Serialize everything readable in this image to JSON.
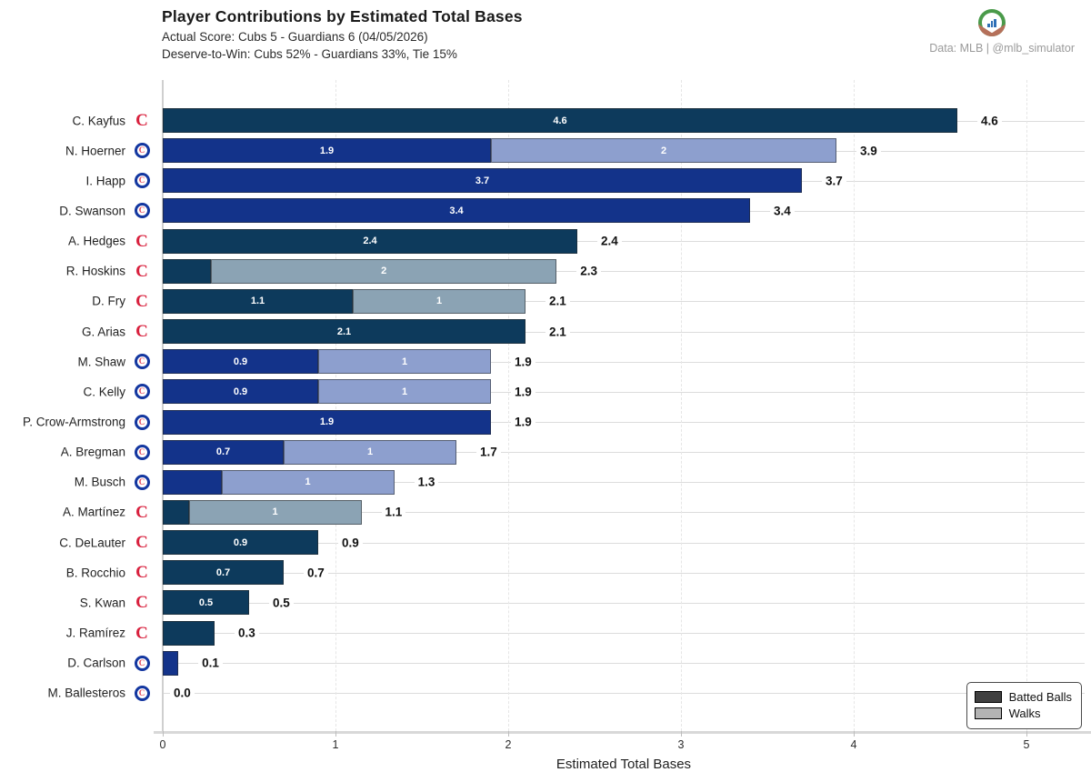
{
  "header": {
    "title": "Player Contributions by Estimated Total Bases",
    "subtitle1": "Actual Score: Cubs 5 - Guardians 6  (04/05/2026)",
    "subtitle2": "Deserve-to-Win: Cubs 52% - Guardians 33%, Tie 15%",
    "credit": "Data: MLB  |  @mlb_simulator",
    "logo": "mlb-simulator-badge"
  },
  "legend": {
    "batted_label": "Batted Balls",
    "walks_label": "Walks",
    "position": "lower right"
  },
  "colors": {
    "guardians_batted": "#0d3a5c",
    "guardians_walks": "#8ba3b4",
    "cubs_batted": "#13338a",
    "cubs_walks": "#8d9fce",
    "guardians_logo_red": "#d8203d",
    "cubs_logo_blue": "#1437a0",
    "bar_label_text": "#ffffff",
    "total_label_text": "#111111",
    "gridline": "#dcdcdc"
  },
  "chart_data": {
    "type": "bar",
    "orientation": "horizontal",
    "stacked": true,
    "title": "Player Contributions by Estimated Total Bases",
    "xlabel": "Estimated Total Bases",
    "ylabel": "",
    "xlim": [
      0,
      5.33
    ],
    "xticks": [
      "0",
      "1",
      "2",
      "3",
      "4",
      "5"
    ],
    "grid": true,
    "series_names": [
      "Batted Balls",
      "Walks"
    ],
    "rows": [
      {
        "player": "C. Kayfus",
        "team": "guardians",
        "batted": 4.6,
        "walks": 0,
        "batted_label": "4.6",
        "walks_label": "",
        "total_label": "4.6"
      },
      {
        "player": "N. Hoerner",
        "team": "cubs",
        "batted": 1.9,
        "walks": 2.0,
        "batted_label": "1.9",
        "walks_label": "2",
        "total_label": "3.9"
      },
      {
        "player": "I. Happ",
        "team": "cubs",
        "batted": 3.7,
        "walks": 0,
        "batted_label": "3.7",
        "walks_label": "",
        "total_label": "3.7"
      },
      {
        "player": "D. Swanson",
        "team": "cubs",
        "batted": 3.4,
        "walks": 0,
        "batted_label": "3.4",
        "walks_label": "",
        "total_label": "3.4"
      },
      {
        "player": "A. Hedges",
        "team": "guardians",
        "batted": 2.4,
        "walks": 0,
        "batted_label": "2.4",
        "walks_label": "",
        "total_label": "2.4"
      },
      {
        "player": "R. Hoskins",
        "team": "guardians",
        "batted": 0.28,
        "walks": 2.0,
        "batted_label": "",
        "walks_label": "2",
        "total_label": "2.3"
      },
      {
        "player": "D. Fry",
        "team": "guardians",
        "batted": 1.1,
        "walks": 1.0,
        "batted_label": "1.1",
        "walks_label": "1",
        "total_label": "2.1"
      },
      {
        "player": "G. Arias",
        "team": "guardians",
        "batted": 2.1,
        "walks": 0,
        "batted_label": "2.1",
        "walks_label": "",
        "total_label": "2.1"
      },
      {
        "player": "M. Shaw",
        "team": "cubs",
        "batted": 0.9,
        "walks": 1.0,
        "batted_label": "0.9",
        "walks_label": "1",
        "total_label": "1.9"
      },
      {
        "player": "C. Kelly",
        "team": "cubs",
        "batted": 0.9,
        "walks": 1.0,
        "batted_label": "0.9",
        "walks_label": "1",
        "total_label": "1.9"
      },
      {
        "player": "P. Crow-Armstrong",
        "team": "cubs",
        "batted": 1.9,
        "walks": 0,
        "batted_label": "1.9",
        "walks_label": "",
        "total_label": "1.9"
      },
      {
        "player": "A. Bregman",
        "team": "cubs",
        "batted": 0.7,
        "walks": 1.0,
        "batted_label": "0.7",
        "walks_label": "1",
        "total_label": "1.7"
      },
      {
        "player": "M. Busch",
        "team": "cubs",
        "batted": 0.34,
        "walks": 1.0,
        "batted_label": "",
        "walks_label": "1",
        "total_label": "1.3"
      },
      {
        "player": "A. Martínez",
        "team": "guardians",
        "batted": 0.15,
        "walks": 1.0,
        "batted_label": "",
        "walks_label": "1",
        "total_label": "1.1"
      },
      {
        "player": "C. DeLauter",
        "team": "guardians",
        "batted": 0.9,
        "walks": 0,
        "batted_label": "0.9",
        "walks_label": "",
        "total_label": "0.9"
      },
      {
        "player": "B. Rocchio",
        "team": "guardians",
        "batted": 0.7,
        "walks": 0,
        "batted_label": "0.7",
        "walks_label": "",
        "total_label": "0.7"
      },
      {
        "player": "S. Kwan",
        "team": "guardians",
        "batted": 0.5,
        "walks": 0,
        "batted_label": "0.5",
        "walks_label": "",
        "total_label": "0.5"
      },
      {
        "player": "J. Ramírez",
        "team": "guardians",
        "batted": 0.3,
        "walks": 0,
        "batted_label": "",
        "walks_label": "",
        "total_label": "0.3"
      },
      {
        "player": "D. Carlson",
        "team": "cubs",
        "batted": 0.09,
        "walks": 0,
        "batted_label": "",
        "walks_label": "",
        "total_label": "0.1"
      },
      {
        "player": "M. Ballesteros",
        "team": "cubs",
        "batted": 0,
        "walks": 0,
        "batted_label": "",
        "walks_label": "",
        "total_label": "0.0"
      }
    ]
  }
}
